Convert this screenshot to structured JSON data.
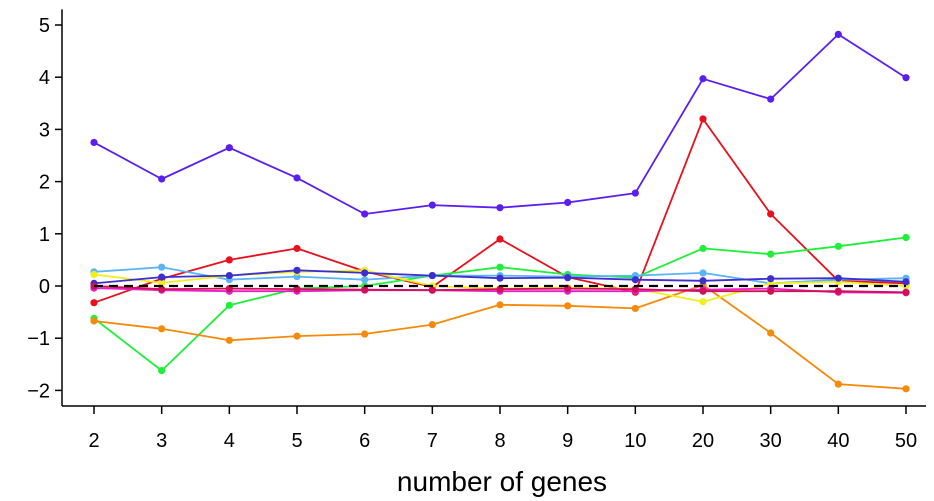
{
  "chart_data": {
    "type": "line",
    "title": "",
    "xlabel": "number of genes",
    "ylabel": "",
    "categories": [
      "2",
      "3",
      "4",
      "5",
      "6",
      "7",
      "8",
      "9",
      "10",
      "20",
      "30",
      "40",
      "50"
    ],
    "ylim": [
      -2.3,
      5.3
    ],
    "yticks": [
      -2,
      -1,
      0,
      1,
      2,
      3,
      4,
      5
    ],
    "ytick_labels": [
      "−2",
      "−1",
      "0",
      "1",
      "2",
      "3",
      "4",
      "5"
    ],
    "reference_line": {
      "y": 0,
      "style": "dashed",
      "color": "#000000"
    },
    "grid": false,
    "legend": "none",
    "series": [
      {
        "color": "#5b1ef0",
        "values": [
          2.75,
          2.05,
          2.65,
          2.07,
          1.38,
          1.55,
          1.5,
          1.6,
          1.78,
          3.97,
          3.58,
          4.82,
          3.99
        ]
      },
      {
        "color": "#e8101c",
        "values": [
          -0.32,
          0.14,
          0.5,
          0.72,
          0.28,
          -0.02,
          0.9,
          0.17,
          -0.12,
          3.2,
          1.38,
          0.1,
          0.05
        ]
      },
      {
        "color": "#1ef03a",
        "values": [
          -0.62,
          -1.62,
          -0.37,
          -0.05,
          0.0,
          0.2,
          0.36,
          0.22,
          0.16,
          0.72,
          0.61,
          0.76,
          0.93
        ]
      },
      {
        "color": "#f58a0a",
        "values": [
          -0.67,
          -0.82,
          -1.04,
          -0.96,
          -0.92,
          -0.74,
          -0.36,
          -0.38,
          -0.43,
          0.02,
          -0.9,
          -1.88,
          -1.97
        ]
      },
      {
        "color": "#5ab4f5",
        "values": [
          0.27,
          0.36,
          0.12,
          0.18,
          0.12,
          0.2,
          0.2,
          0.18,
          0.2,
          0.25,
          0.05,
          0.12,
          0.15
        ]
      },
      {
        "color": "#f0ef1e",
        "values": [
          0.22,
          0.06,
          0.2,
          0.27,
          0.3,
          0.0,
          -0.05,
          -0.03,
          -0.05,
          -0.3,
          0.05,
          0.08,
          0.0
        ]
      },
      {
        "color": "#3c2fd0",
        "values": [
          0.05,
          0.17,
          0.2,
          0.3,
          0.25,
          0.2,
          0.15,
          0.16,
          0.12,
          0.1,
          0.14,
          0.15,
          0.08
        ]
      },
      {
        "color": "#e81ec8",
        "values": [
          -0.04,
          -0.08,
          -0.1,
          -0.1,
          -0.08,
          -0.08,
          -0.1,
          -0.1,
          -0.1,
          -0.07,
          -0.05,
          -0.12,
          -0.13
        ]
      },
      {
        "color": "#d01058",
        "values": [
          0.0,
          -0.06,
          -0.05,
          -0.06,
          -0.07,
          -0.08,
          -0.06,
          -0.05,
          -0.06,
          -0.1,
          -0.1,
          -0.1,
          -0.12
        ]
      }
    ]
  }
}
